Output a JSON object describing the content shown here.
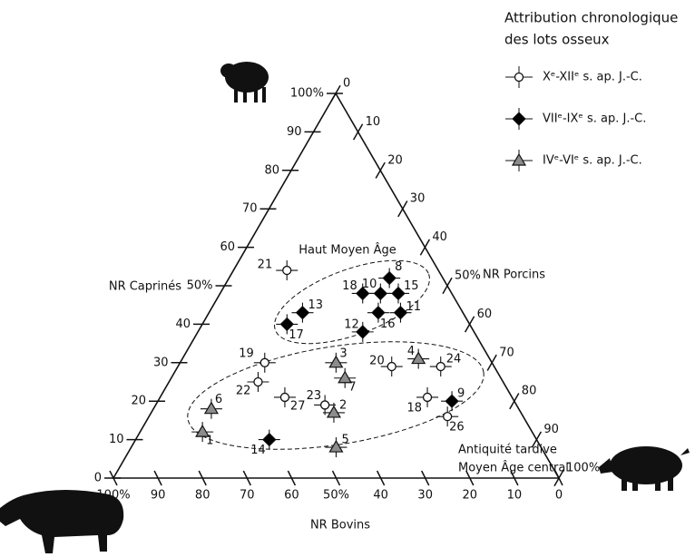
{
  "chart_data": {
    "type": "ternary",
    "legend_title": [
      "Attribution chronologique",
      "des lots osseux"
    ],
    "annotations": [
      "Haut Moyen Âge",
      "Antiquité tardive",
      "Moyen Âge central"
    ],
    "axes": {
      "bottom": {
        "label": "NR Bovins",
        "ticks": [
          {
            "value": 100,
            "label": "100%"
          },
          90,
          80,
          70,
          60,
          {
            "value": 50,
            "label": "50%"
          },
          40,
          30,
          20,
          10,
          0
        ]
      },
      "left": {
        "label": "NR Caprinés",
        "ticks": [
          0,
          10,
          20,
          30,
          40,
          {
            "value": 50,
            "label": "50%"
          },
          60,
          70,
          80,
          90,
          {
            "value": 100,
            "label": "100%"
          }
        ]
      },
      "right": {
        "label": "NR Porcins",
        "ticks": [
          0,
          10,
          20,
          30,
          40,
          {
            "value": 50,
            "label": "50%"
          },
          60,
          70,
          80,
          90,
          {
            "value": 100,
            "label": "100%"
          }
        ]
      }
    },
    "series": [
      {
        "name": "Xᵉ-XIIᵉ s. ap. J.-C.",
        "marker": "circle",
        "color": "#ffffff",
        "labels": [
          "21",
          "19",
          "22",
          "27",
          "23",
          "20",
          "24",
          "18",
          "26"
        ],
        "bovins": [
          34,
          51,
          55,
          51,
          43,
          23,
          12,
          19,
          17
        ],
        "caprines": [
          54,
          30,
          25,
          21,
          19,
          29,
          29,
          21,
          16
        ],
        "porcins": [
          12,
          19,
          20,
          28,
          38,
          48,
          59,
          60,
          67
        ]
      },
      {
        "name": "VIIᵉ-IXᵉ s. ap. J.-C.",
        "marker": "diamond",
        "color": "#000000",
        "labels": [
          "8",
          "18",
          "10",
          "15",
          "16",
          "11",
          "13",
          "17",
          "12",
          "9",
          "14"
        ],
        "bovins": [
          12,
          20,
          16,
          12,
          19,
          14,
          36,
          41,
          25,
          14,
          60
        ],
        "caprines": [
          52,
          48,
          48,
          48,
          43,
          43,
          43,
          40,
          38,
          20,
          10
        ],
        "porcins": [
          36,
          32,
          36,
          40,
          38,
          43,
          21,
          19,
          37,
          66,
          30
        ]
      },
      {
        "name": "IVᵉ-VIᵉ s. ap. J.-C.",
        "marker": "triangle",
        "color": "#8c8c8c",
        "labels": [
          "3",
          "7",
          "2",
          "5",
          "4",
          "6",
          "1"
        ],
        "bovins": [
          35,
          35,
          42,
          46,
          16,
          69,
          74
        ],
        "caprines": [
          30,
          26,
          17,
          8,
          31,
          18,
          12
        ],
        "porcins": [
          35,
          39,
          41,
          46,
          53,
          13,
          14
        ]
      }
    ]
  }
}
